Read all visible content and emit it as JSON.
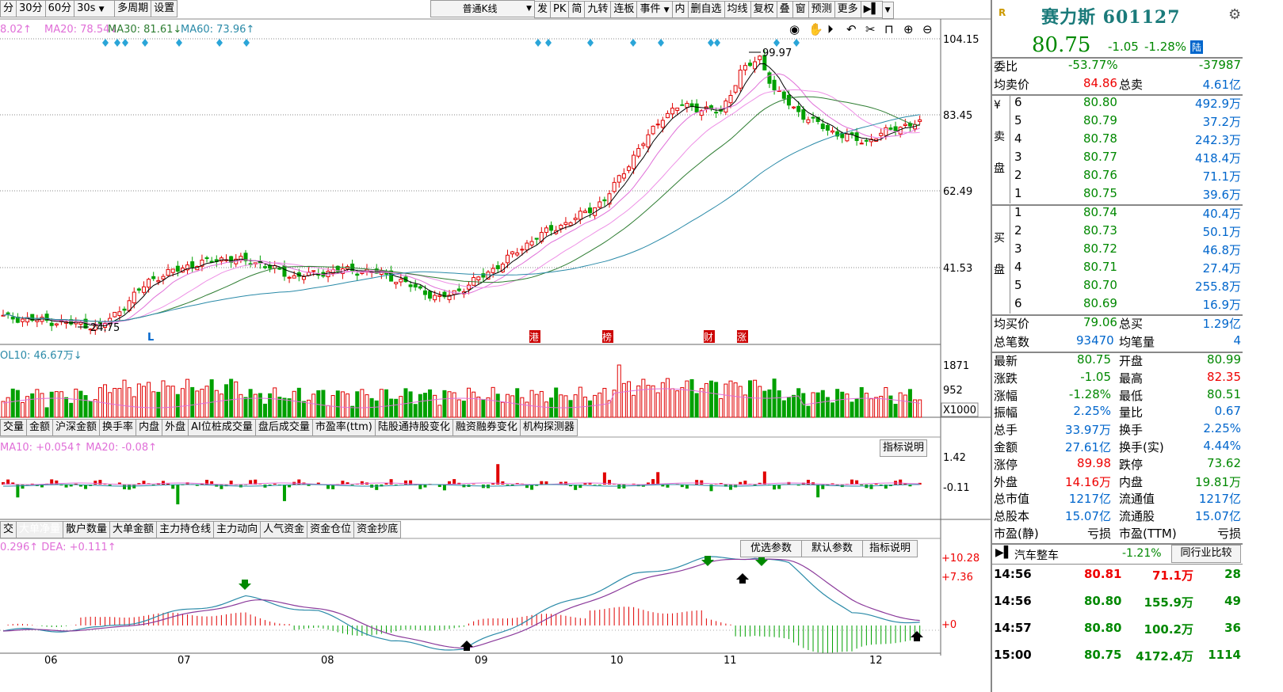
{
  "toolbar_left": [
    "分",
    "30分",
    "60分",
    "30s",
    "多周期",
    "设置"
  ],
  "toolbar_right": [
    "普通K线",
    "发",
    "PK",
    "简",
    "九转",
    "连板",
    "事件",
    "内",
    "删自选",
    "均线",
    "复权",
    "叠",
    "窗",
    "预测",
    "更多"
  ],
  "ma_legend": {
    "ma10": "8.02↑",
    "ma20": "MA20: 78.54↓",
    "ma30": "MA30: 81.61↓",
    "ma60": "MA60: 73.96↑"
  },
  "price_axis": [
    "104.15",
    "83.45",
    "62.49",
    "41.53"
  ],
  "annotations": {
    "high": "99.97",
    "low": "24.75",
    "L": "L"
  },
  "event_tags": [
    "港",
    "榜",
    "财",
    "涨"
  ],
  "vol_legend": "OL10: 46.67万↓",
  "vol_axis": [
    "1871",
    "952",
    "X1000"
  ],
  "tabs1": [
    "交量",
    "金额",
    "沪深金额",
    "换手率",
    "内盘",
    "外盘",
    "AI位桩成交量",
    "盘后成交量",
    "市盈率(ttm)",
    "陆股通持股变化",
    "融资融券变化",
    "机构探测器"
  ],
  "ind1_legend": "MA10: +0.054↑  MA20: -0.08↑",
  "ind1_button": "指标说明",
  "ind1_axis": [
    "1.42",
    "-0.11"
  ],
  "tabs2": [
    "交",
    "大单净量",
    "散户数量",
    "大单金额",
    "主力持仓线",
    "主力动向",
    "人气资金",
    "资金仓位",
    "资金抄底"
  ],
  "ind2_legend": "0.296↑  DEA: +0.111↑",
  "ind2_buttons": [
    "优选参数",
    "默认参数",
    "指标说明"
  ],
  "ind2_axis": [
    "+10.28",
    "+7.36",
    "+0"
  ],
  "x_axis": [
    "06",
    "07",
    "08",
    "09",
    "10",
    "11",
    "12"
  ],
  "stock": {
    "name": "赛力斯 601127",
    "price": "80.75",
    "change": "-1.05",
    "change_pct": "-1.28%",
    "tag": "陆",
    "r_tag": "R"
  },
  "order_summary": {
    "wei_bi_label": "委比",
    "wei_bi": "-53.77%",
    "wei_cha": "-37987",
    "jun_mai_label": "均卖价",
    "jun_mai": "84.86",
    "zong_mai_label": "总卖",
    "zong_mai": "4.61亿"
  },
  "asks": [
    {
      "lvl": "6",
      "price": "80.80",
      "vol": "492.9万"
    },
    {
      "lvl": "5",
      "price": "80.79",
      "vol": "37.2万"
    },
    {
      "lvl": "4",
      "price": "80.78",
      "vol": "242.3万"
    },
    {
      "lvl": "3",
      "price": "80.77",
      "vol": "418.4万"
    },
    {
      "lvl": "2",
      "price": "80.76",
      "vol": "71.1万"
    },
    {
      "lvl": "1",
      "price": "80.75",
      "vol": "39.6万"
    }
  ],
  "bids": [
    {
      "lvl": "1",
      "price": "80.74",
      "vol": "40.4万"
    },
    {
      "lvl": "2",
      "price": "80.73",
      "vol": "50.1万"
    },
    {
      "lvl": "3",
      "price": "80.72",
      "vol": "46.8万"
    },
    {
      "lvl": "4",
      "price": "80.71",
      "vol": "27.4万"
    },
    {
      "lvl": "5",
      "price": "80.70",
      "vol": "255.8万"
    },
    {
      "lvl": "6",
      "price": "80.69",
      "vol": "16.9万"
    }
  ],
  "sell_label": [
    "¥",
    "卖",
    "盘"
  ],
  "buy_label": [
    "买",
    "盘"
  ],
  "buy_summary": {
    "jun_mai_label": "均买价",
    "jun_mai": "79.06",
    "zong_mai_label": "总买",
    "zong_mai": "1.29亿",
    "bi_label": "总笔数",
    "bi": "93470",
    "jbl_label": "均笔量",
    "jbl": "4"
  },
  "stats": [
    {
      "l1": "最新",
      "v1": "80.75",
      "c1": "green",
      "l2": "开盘",
      "v2": "80.99",
      "c2": "green"
    },
    {
      "l1": "涨跌",
      "v1": "-1.05",
      "c1": "green",
      "l2": "最高",
      "v2": "82.35",
      "c2": "red"
    },
    {
      "l1": "涨幅",
      "v1": "-1.28%",
      "c1": "green",
      "l2": "最低",
      "v2": "80.51",
      "c2": "green"
    },
    {
      "l1": "振幅",
      "v1": "2.25%",
      "c1": "blue",
      "l2": "量比",
      "v2": "0.67",
      "c2": "blue"
    },
    {
      "l1": "总手",
      "v1": "33.97万",
      "c1": "blue",
      "l2": "换手",
      "v2": "2.25%",
      "c2": "blue"
    },
    {
      "l1": "金额",
      "v1": "27.61亿",
      "c1": "blue",
      "l2": "换手(实)",
      "v2": "4.44%",
      "c2": "blue"
    },
    {
      "l1": "涨停",
      "v1": "89.98",
      "c1": "red",
      "l2": "跌停",
      "v2": "73.62",
      "c2": "green"
    },
    {
      "l1": "外盘",
      "v1": "14.16万",
      "c1": "red",
      "l2": "内盘",
      "v2": "19.81万",
      "c2": "green"
    },
    {
      "l1": "总市值",
      "v1": "1217亿",
      "c1": "blue",
      "l2": "流通值",
      "v2": "1217亿",
      "c2": "blue"
    },
    {
      "l1": "总股本",
      "v1": "15.07亿",
      "c1": "blue",
      "l2": "流通股",
      "v2": "15.07亿",
      "c2": "blue"
    },
    {
      "l1": "市盈(静)",
      "v1": "亏损",
      "c1": "black",
      "l2": "市盈(TTM)",
      "v2": "亏损",
      "c2": "black"
    }
  ],
  "sector": {
    "name": "汽车整车",
    "pct": "-1.21%",
    "button": "同行业比较"
  },
  "ticks": [
    {
      "time": "14:56",
      "price": "80.81",
      "vol": "71.1万",
      "n": "28"
    },
    {
      "time": "14:56",
      "price": "80.80",
      "vol": "155.9万",
      "n": "49"
    },
    {
      "time": "14:57",
      "price": "80.80",
      "vol": "100.2万",
      "n": "36"
    },
    {
      "time": "15:00",
      "price": "80.75",
      "vol": "4172.4万",
      "n": "1114"
    }
  ],
  "colors": {
    "up": "#e00000",
    "down": "#00a000",
    "ma10": "#e06fd8",
    "ma30": "#2e7d32",
    "ma60": "#2a8aa8",
    "diamond": "#2aa5d8"
  }
}
